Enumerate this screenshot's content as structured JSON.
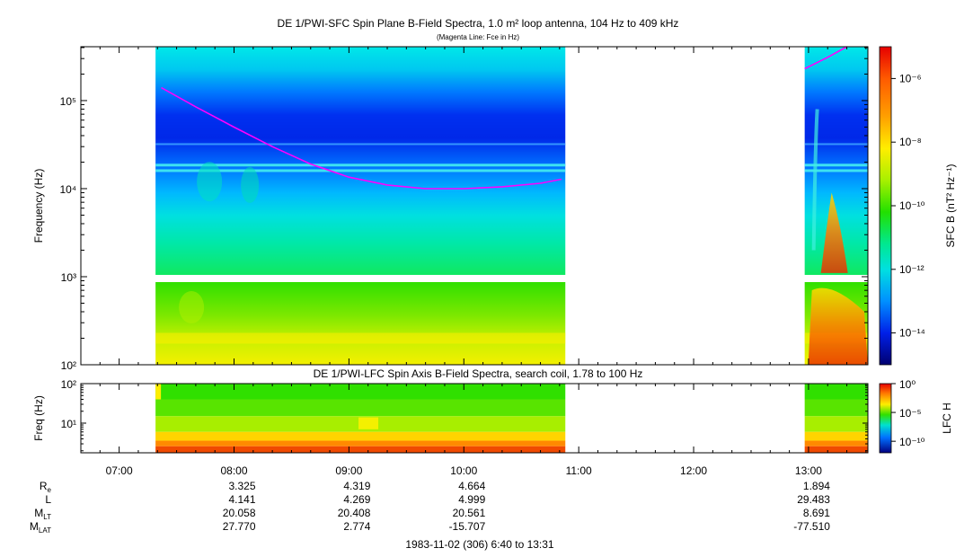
{
  "chart_data": [
    {
      "type": "heatmap",
      "title": "DE 1/PWI-SFC  Spin Plane B-Field Spectra, 1.0 m² loop antenna, 104 Hz to 409 kHz",
      "subtitle": "(Magenta Line: Fce in Hz)",
      "ylabel": "Frequency (Hz)",
      "yscale": "log",
      "ylim": [
        100,
        409000
      ],
      "ytick_labels": [
        "10²",
        "10³",
        "10⁴",
        "10⁵"
      ],
      "ytick_values": [
        100,
        1000,
        10000,
        100000
      ],
      "colorbar": {
        "label": "SFC B (nT² Hz⁻¹)",
        "scale": "log",
        "range": [
          1e-15,
          1e-05
        ],
        "tick_labels": [
          "10⁻⁶",
          "10⁻⁸",
          "10⁻¹⁰",
          "10⁻¹²",
          "10⁻¹⁴"
        ],
        "tick_values": [
          1e-06,
          1e-08,
          1e-10,
          1e-12,
          1e-14
        ]
      },
      "data_segments": [
        [
          "07:19",
          "10:53"
        ],
        [
          "12:58",
          "13:31"
        ]
      ],
      "series": [
        {
          "name": "Fce",
          "color": "#ff00ff",
          "x": [
            "07:22",
            "07:40",
            "08:00",
            "08:20",
            "08:40",
            "09:00",
            "09:20",
            "09:40",
            "10:00",
            "10:20",
            "10:40",
            "10:51"
          ],
          "values": [
            140000,
            85000,
            50000,
            30000,
            19000,
            13500,
            11000,
            10000,
            10000,
            10500,
            11500,
            12800
          ]
        },
        {
          "name": "Fce",
          "color": "#ff00ff",
          "x": [
            "12:58",
            "13:10",
            "13:20"
          ],
          "values": [
            230000,
            310000,
            409000
          ]
        }
      ]
    },
    {
      "type": "heatmap",
      "title": "DE 1/PWI-LFC  Spin Axis B-Field Spectra, search coil, 1.78 to 100 Hz",
      "ylabel": "Freq (Hz)",
      "yscale": "log",
      "ylim": [
        1.78,
        100
      ],
      "ytick_labels": [
        "10¹",
        "10²"
      ],
      "ytick_values": [
        10,
        100
      ],
      "colorbar": {
        "label": "LFC H",
        "scale": "log",
        "range": [
          1e-12,
          1
        ],
        "tick_labels": [
          "10⁰",
          "10⁻⁵",
          "10⁻¹⁰"
        ],
        "tick_values": [
          1,
          1e-05,
          1e-10
        ]
      },
      "data_segments": [
        [
          "07:19",
          "10:53"
        ],
        [
          "12:58",
          "13:31"
        ]
      ]
    }
  ],
  "time_axis": {
    "range": [
      "06:40",
      "13:31"
    ],
    "tick_labels": [
      "07:00",
      "08:00",
      "09:00",
      "10:00",
      "11:00",
      "12:00",
      "13:00"
    ],
    "tick_values": [
      "07:00",
      "08:00",
      "09:00",
      "10:00",
      "11:00",
      "12:00",
      "13:00"
    ],
    "caption": "1983-11-02 (306) 6:40 to 13:31"
  },
  "ephemeris": {
    "labels": [
      {
        "main": "R",
        "sub": "e"
      },
      {
        "main": "L",
        "sub": ""
      },
      {
        "main": "M",
        "sub": "LT"
      },
      {
        "main": "M",
        "sub": "LAT"
      }
    ],
    "columns": [
      {
        "time": "08:00",
        "values": [
          "3.325",
          "4.141",
          "20.058",
          "27.770"
        ]
      },
      {
        "time": "09:00",
        "values": [
          "4.319",
          "4.269",
          "20.408",
          "2.774"
        ]
      },
      {
        "time": "10:00",
        "values": [
          "4.664",
          "4.999",
          "20.561",
          "-15.707"
        ]
      },
      {
        "time": "13:00",
        "values": [
          "1.894",
          "29.483",
          "8.691",
          "-77.510"
        ]
      }
    ]
  }
}
